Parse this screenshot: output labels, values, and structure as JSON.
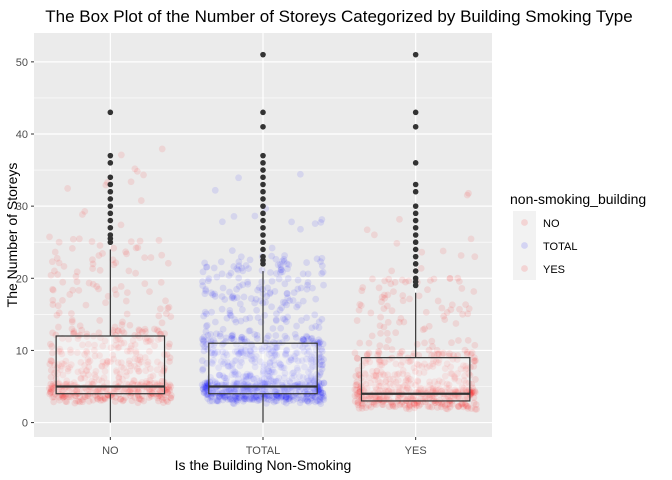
{
  "chart_data": {
    "type": "box",
    "title": "The Box Plot of the Number of Storeys Categorized by Building Smoking Type",
    "xlabel": "Is the Building Non-Smoking",
    "ylabel": "The Number of Storeys",
    "categories": [
      "NO",
      "TOTAL",
      "YES"
    ],
    "ylim": [
      -2,
      54
    ],
    "yticks": [
      0,
      10,
      20,
      30,
      40,
      50
    ],
    "grid": true,
    "legend": {
      "title": "non-smoking_building",
      "position": "right",
      "entries": [
        "NO",
        "TOTAL",
        "YES"
      ]
    },
    "colors": {
      "NO": "#ff0000",
      "TOTAL": "#0000ff",
      "YES": "#ff0000",
      "panel": "#ebebeb",
      "grid": "#ffffff",
      "outlier": "#333333"
    },
    "boxes": [
      {
        "category": "NO",
        "min": 0,
        "q1": 4,
        "median": 5,
        "q3": 12,
        "max": 24,
        "outliers": [
          25,
          25.5,
          26,
          27,
          28,
          29,
          30,
          31,
          32,
          33,
          34,
          36,
          37,
          43
        ]
      },
      {
        "category": "TOTAL",
        "min": 0,
        "q1": 4,
        "median": 5,
        "q3": 11,
        "max": 21,
        "outliers": [
          22,
          22.5,
          23,
          24,
          25,
          26,
          27,
          28,
          29,
          30,
          31,
          32,
          33,
          34,
          35,
          36,
          37,
          41,
          43,
          51
        ]
      },
      {
        "category": "YES",
        "min": 3,
        "q1": 3,
        "median": 4,
        "q3": 9,
        "max": 18,
        "outliers": [
          19,
          19.5,
          20,
          21,
          22,
          23,
          24,
          25,
          26,
          27,
          28,
          29,
          30,
          32,
          33,
          36,
          41,
          43,
          51
        ]
      }
    ]
  }
}
